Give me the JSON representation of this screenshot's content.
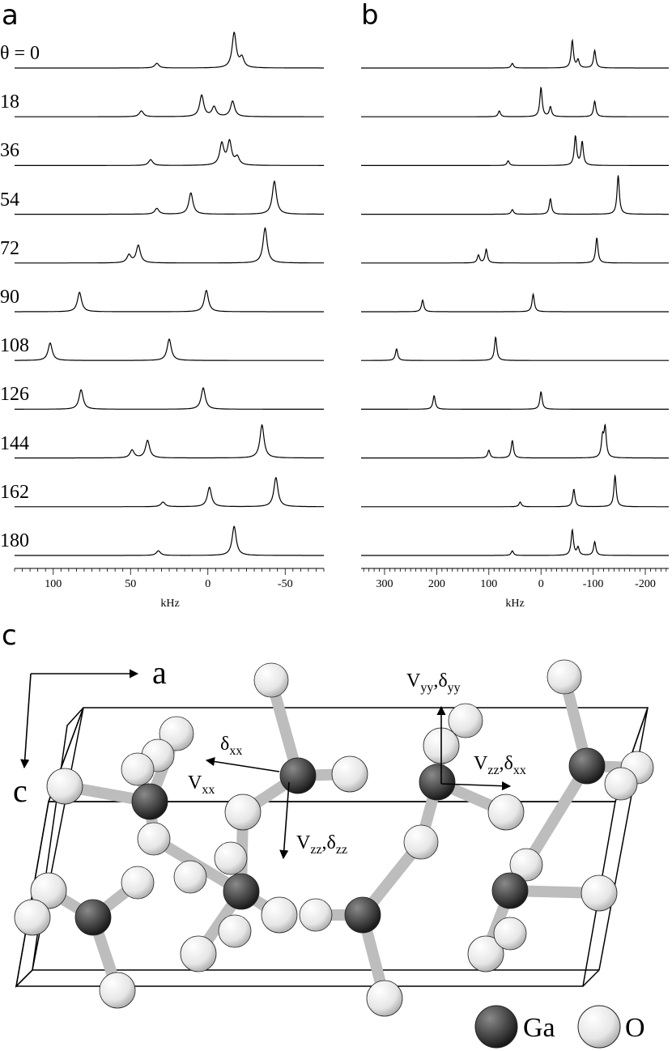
{
  "panels": {
    "a": {
      "letter": "a"
    },
    "b": {
      "letter": "b"
    },
    "c": {
      "letter": "c"
    }
  },
  "angles": [
    "θ = 0",
    "18",
    "36",
    "54",
    "72",
    "90",
    "108",
    "126",
    "144",
    "162",
    "180"
  ],
  "chart_data": [
    {
      "type": "line",
      "panel": "a",
      "xlabel": "kHz",
      "xlim": [
        125,
        -75
      ],
      "x_ticks": [
        100,
        50,
        0,
        -50
      ],
      "x_tick_labels": [
        "100",
        "50",
        "0",
        "-50"
      ],
      "series": [
        {
          "peaks": [
            [
              33,
              0.12
            ],
            [
              -17,
              0.9
            ],
            [
              -22,
              0.25
            ]
          ]
        },
        {
          "peaks": [
            [
              43,
              0.15
            ],
            [
              4,
              0.55
            ],
            [
              -4,
              0.25
            ],
            [
              -16,
              0.4
            ]
          ]
        },
        {
          "peaks": [
            [
              37,
              0.15
            ],
            [
              -9,
              0.55
            ],
            [
              -14,
              0.6
            ],
            [
              -19,
              0.2
            ]
          ]
        },
        {
          "peaks": [
            [
              33,
              0.15
            ],
            [
              11,
              0.55
            ],
            [
              -43,
              0.85
            ]
          ]
        },
        {
          "peaks": [
            [
              51,
              0.2
            ],
            [
              45,
              0.45
            ],
            [
              -37,
              0.9
            ]
          ]
        },
        {
          "peaks": [
            [
              83,
              0.5
            ],
            [
              1,
              0.55
            ]
          ]
        },
        {
          "peaks": [
            [
              102,
              0.45
            ],
            [
              25,
              0.55
            ]
          ]
        },
        {
          "peaks": [
            [
              82,
              0.5
            ],
            [
              3,
              0.55
            ]
          ]
        },
        {
          "peaks": [
            [
              49,
              0.2
            ],
            [
              39,
              0.45
            ],
            [
              -35,
              0.85
            ]
          ]
        },
        {
          "peaks": [
            [
              29,
              0.12
            ],
            [
              -1,
              0.5
            ],
            [
              -44,
              0.75
            ]
          ]
        },
        {
          "peaks": [
            [
              32,
              0.12
            ],
            [
              -17,
              0.75
            ]
          ]
        }
      ]
    },
    {
      "type": "line",
      "panel": "b",
      "xlabel": "kHz",
      "xlim": [
        345,
        -245
      ],
      "x_ticks": [
        300,
        200,
        100,
        0,
        -100,
        -200
      ],
      "x_tick_labels": [
        "300",
        "200",
        "100",
        "0",
        "-100",
        "-200"
      ],
      "series": [
        {
          "peaks": [
            [
              55,
              0.12
            ],
            [
              -60,
              0.7
            ],
            [
              -71,
              0.2
            ],
            [
              -103,
              0.45
            ]
          ]
        },
        {
          "peaks": [
            [
              80,
              0.15
            ],
            [
              0,
              0.75
            ],
            [
              -18,
              0.25
            ],
            [
              -103,
              0.4
            ]
          ]
        },
        {
          "peaks": [
            [
              63,
              0.12
            ],
            [
              -66,
              0.75
            ],
            [
              -79,
              0.6
            ]
          ]
        },
        {
          "peaks": [
            [
              55,
              0.12
            ],
            [
              -18,
              0.4
            ],
            [
              -148,
              1.0
            ]
          ]
        },
        {
          "peaks": [
            [
              120,
              0.2
            ],
            [
              105,
              0.35
            ],
            [
              -107,
              0.65
            ]
          ]
        },
        {
          "peaks": [
            [
              227,
              0.3
            ],
            [
              15,
              0.45
            ]
          ]
        },
        {
          "peaks": [
            [
              277,
              0.3
            ],
            [
              87,
              0.6
            ]
          ]
        },
        {
          "peaks": [
            [
              205,
              0.35
            ],
            [
              0,
              0.45
            ]
          ]
        },
        {
          "peaks": [
            [
              100,
              0.2
            ],
            [
              55,
              0.45
            ],
            [
              -118,
              0.5
            ],
            [
              -123,
              0.75
            ]
          ]
        },
        {
          "peaks": [
            [
              40,
              0.12
            ],
            [
              -63,
              0.45
            ],
            [
              -142,
              0.8
            ]
          ]
        },
        {
          "peaks": [
            [
              55,
              0.12
            ],
            [
              -60,
              0.65
            ],
            [
              -71,
              0.2
            ],
            [
              -103,
              0.35
            ]
          ]
        }
      ]
    }
  ],
  "structure": {
    "axis_a": "a",
    "axis_c": "c",
    "labels": {
      "vyy": "V",
      "vyy_sub": "yy",
      "dyy": "δ",
      "dyy_sub": "yy",
      "dxx": "δ",
      "dxx_sub": "xx",
      "vxx": "V",
      "vxx_sub": "xx",
      "vzz_right": "V",
      "vzz_right_sub": "zz",
      "dxx_right": "δ",
      "dxx_right_sub": "xx",
      "vzz_mid": "V",
      "vzz_mid_sub": "zz",
      "dzz": "δ",
      "dzz_sub": "zz"
    },
    "legend": {
      "ga": "Ga",
      "o": "O"
    },
    "colors": {
      "ga_atom": "#4a4a4a",
      "o_atom": "#f2f2f2"
    }
  }
}
